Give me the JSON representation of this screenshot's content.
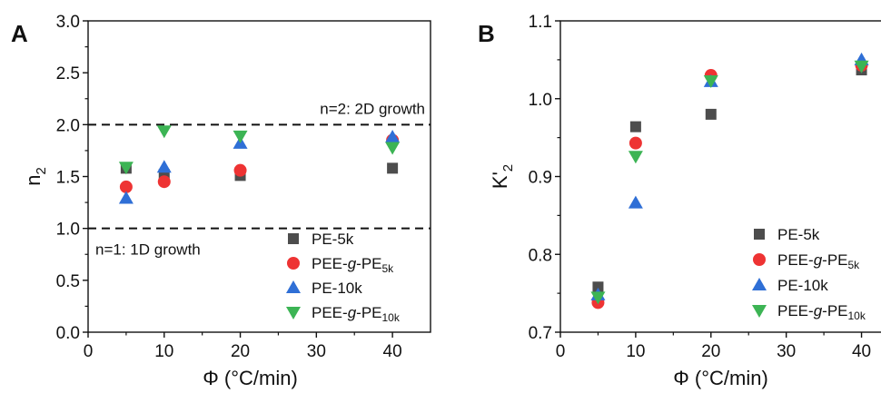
{
  "chart_data": [
    {
      "type": "scatter",
      "panel": "A",
      "xlabel": "Φ (°C/min)",
      "ylabel": "n2",
      "xlim": [
        0,
        45
      ],
      "ylim": [
        0.0,
        3.0
      ],
      "xticks": [
        0,
        10,
        20,
        30,
        40
      ],
      "yticks": [
        0.0,
        0.5,
        1.0,
        1.5,
        2.0,
        2.5,
        3.0
      ],
      "x": [
        5,
        10,
        20,
        40
      ],
      "series": [
        {
          "name": "PE-5k",
          "marker": "square",
          "color": "#4d4d4d",
          "values": [
            1.58,
            1.52,
            1.51,
            1.58
          ]
        },
        {
          "name": "PEE-g-PE5k",
          "marker": "circle",
          "color": "#ee3333",
          "values": [
            1.4,
            1.45,
            1.56,
            1.85
          ]
        },
        {
          "name": "PE-10k",
          "marker": "triangle-up",
          "color": "#2f6fd6",
          "values": [
            1.29,
            1.59,
            1.82,
            1.88
          ]
        },
        {
          "name": "PEE-g-PE10k",
          "marker": "triangle-down",
          "color": "#3cb454",
          "values": [
            1.59,
            1.94,
            1.89,
            1.78
          ]
        }
      ],
      "reference_lines": [
        {
          "y": 2.0,
          "label": "n=2: 2D growth"
        },
        {
          "y": 1.0,
          "label": "n=1: 1D growth"
        }
      ],
      "legend": "bottom-right"
    },
    {
      "type": "scatter",
      "panel": "B",
      "xlabel": "Φ (°C/min)",
      "ylabel": "K'2",
      "xlim": [
        0,
        45
      ],
      "ylim": [
        0.7,
        1.1
      ],
      "xticks": [
        0,
        10,
        20,
        30,
        40
      ],
      "yticks": [
        0.7,
        0.8,
        0.9,
        1.0,
        1.1
      ],
      "x": [
        5,
        10,
        20,
        40
      ],
      "series": [
        {
          "name": "PE-5k",
          "marker": "square",
          "color": "#4d4d4d",
          "values": [
            0.758,
            0.964,
            0.98,
            1.037
          ]
        },
        {
          "name": "PEE-g-PE5k",
          "marker": "circle",
          "color": "#ee3333",
          "values": [
            0.738,
            0.943,
            1.03,
            1.043
          ]
        },
        {
          "name": "PE-10k",
          "marker": "triangle-up",
          "color": "#2f6fd6",
          "values": [
            0.748,
            0.866,
            1.022,
            1.05
          ]
        },
        {
          "name": "PEE-g-PE10k",
          "marker": "triangle-down",
          "color": "#3cb454",
          "values": [
            0.745,
            0.926,
            1.023,
            1.042
          ]
        }
      ],
      "legend": "bottom-right"
    }
  ]
}
